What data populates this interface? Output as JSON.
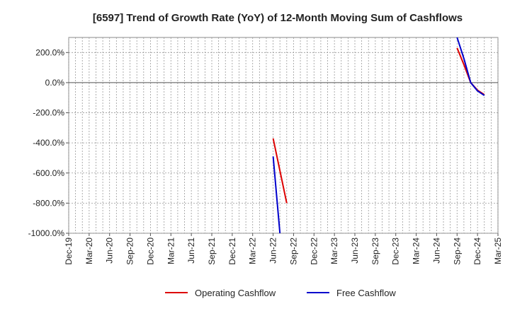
{
  "chart_data": {
    "type": "line",
    "title": "[6597]  Trend of Growth Rate (YoY) of 12-Month Moving Sum of Cashflows",
    "xlabel": "",
    "ylabel": "",
    "ylim": [
      -1000,
      300
    ],
    "y_ticks": [
      200,
      0,
      -200,
      -400,
      -600,
      -800,
      -1000
    ],
    "y_tick_labels": [
      "200.0%",
      "0.0%",
      "-200.0%",
      "-400.0%",
      "-600.0%",
      "-800.0%",
      "-1000.0%"
    ],
    "x_tick_labels": [
      "Dec-19",
      "Mar-20",
      "Jun-20",
      "Sep-20",
      "Dec-20",
      "Mar-21",
      "Jun-21",
      "Sep-21",
      "Dec-21",
      "Mar-22",
      "Jun-22",
      "Sep-22",
      "Dec-22",
      "Mar-23",
      "Jun-23",
      "Sep-23",
      "Dec-23",
      "Mar-24",
      "Jun-24",
      "Sep-24",
      "Dec-24",
      "Mar-25"
    ],
    "grid": true,
    "legend_position": "bottom-center",
    "series": [
      {
        "name": "Operating Cashflow",
        "color": "#dd0000",
        "segments": [
          [
            [
              "2022-06",
              -370
            ],
            [
              "2022-08",
              -800
            ]
          ],
          [
            [
              "2024-09",
              230
            ],
            [
              "2024-10",
              120
            ],
            [
              "2024-11",
              0
            ],
            [
              "2024-12",
              -50
            ],
            [
              "2025-01",
              -80
            ]
          ]
        ]
      },
      {
        "name": "Free Cashflow",
        "color": "#0000cc",
        "segments": [
          [
            [
              "2022-06",
              -490
            ],
            [
              "2022-07",
              -1000
            ]
          ],
          [
            [
              "2024-09",
              310
            ],
            [
              "2024-10",
              160
            ],
            [
              "2024-11",
              0
            ],
            [
              "2024-12",
              -55
            ],
            [
              "2025-01",
              -85
            ]
          ]
        ]
      }
    ]
  }
}
